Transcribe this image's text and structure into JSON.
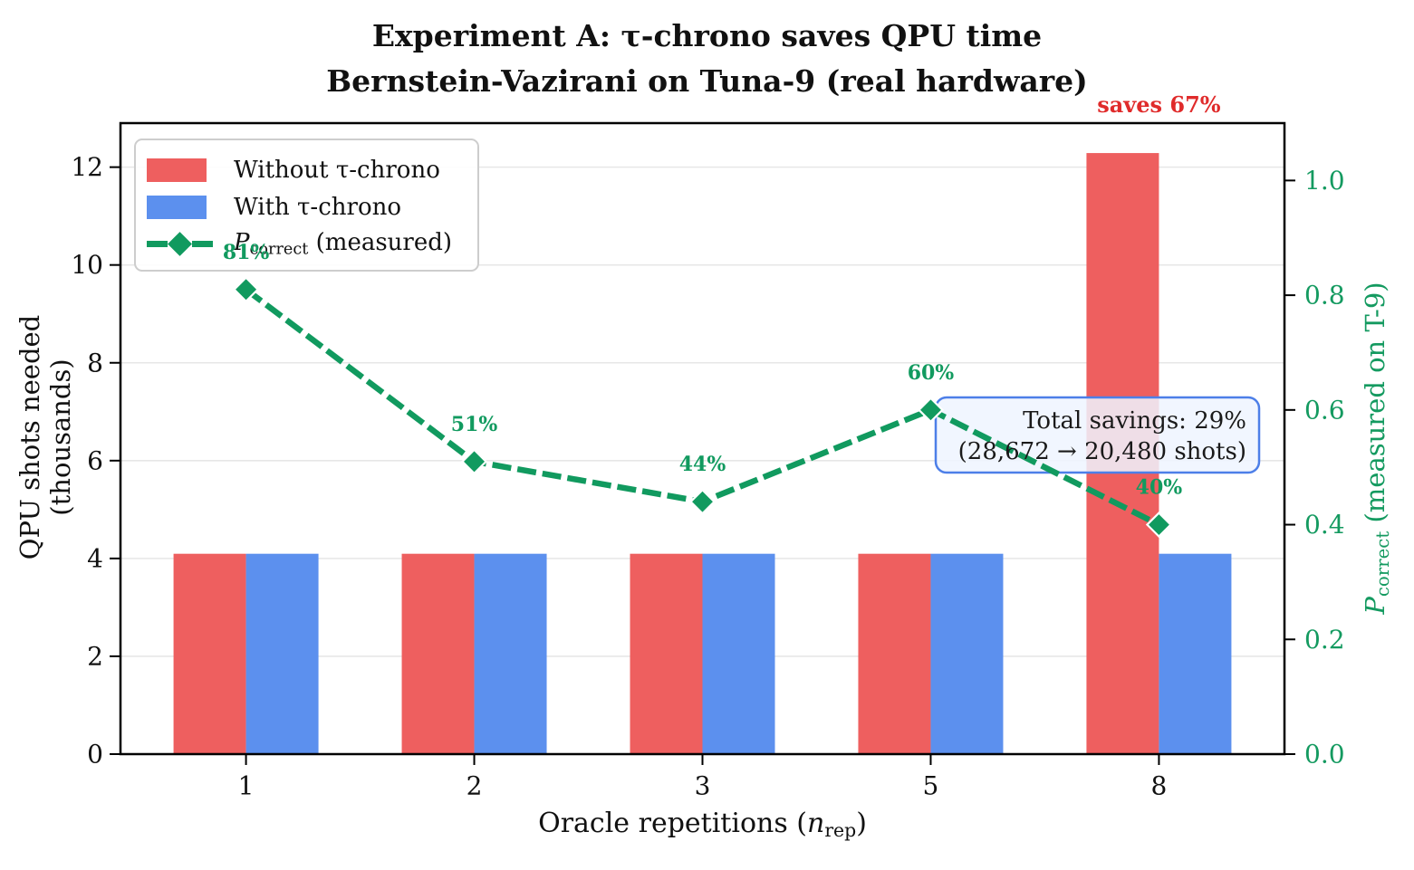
{
  "figure": {
    "title": "Experiment A: τ-chrono saves QPU time",
    "subtitle": "Bernstein-Vazirani on Tuna-9 (real hardware)"
  },
  "axes": {
    "x": {
      "label_pre": "Oracle repetitions (",
      "label_var": "n",
      "label_sub": "rep",
      "label_post": ")",
      "tick_labels": [
        "1",
        "2",
        "3",
        "5",
        "8"
      ]
    },
    "y_left": {
      "label": "QPU shots needed (thousands)",
      "tick_values": [
        0,
        2,
        4,
        6,
        8,
        10,
        12
      ],
      "tick_labels": [
        "0",
        "2",
        "4",
        "6",
        "8",
        "10",
        "12"
      ],
      "max": 12.9,
      "color": "#111111"
    },
    "y_right": {
      "label_var": "P",
      "label_sub": "correct",
      "label_rest": " (measured on T-9)",
      "tick_values": [
        0.0,
        0.2,
        0.4,
        0.6,
        0.8,
        1.0
      ],
      "tick_labels": [
        "0.0",
        "0.2",
        "0.4",
        "0.6",
        "0.8",
        "1.0"
      ],
      "max": 1.1,
      "color": "#149a60"
    }
  },
  "legend": {
    "items": [
      {
        "type": "bar",
        "color": "#ee5f5f",
        "label": "Without τ-chrono"
      },
      {
        "type": "bar",
        "color": "#5c90ee",
        "label": "With τ-chrono"
      },
      {
        "type": "line",
        "color": "#119a5f",
        "label_var": "P",
        "label_sub": "correct",
        "label_rest": " (measured)"
      }
    ]
  },
  "chart_data": {
    "type": "bar",
    "title": "Experiment A: τ-chrono saves QPU time",
    "subtitle": "Bernstein-Vazirani on Tuna-9 (real hardware)",
    "categories": [
      "1",
      "2",
      "3",
      "5",
      "8"
    ],
    "xlabel": "Oracle repetitions (n_rep)",
    "ylabel_left": "QPU shots needed (thousands)",
    "ylabel_right": "P_correct (measured on T-9)",
    "ylim_left": [
      0,
      12.9
    ],
    "ylim_right": [
      0,
      1.1
    ],
    "grid": "horizontal",
    "grid_color": "#e7e7e7",
    "legend_position": "upper left",
    "series": [
      {
        "name": "Without τ-chrono",
        "kind": "bar",
        "axis": "left",
        "color": "#ee5f5f",
        "values": [
          4.096,
          4.096,
          4.096,
          4.096,
          12.288
        ]
      },
      {
        "name": "With τ-chrono",
        "kind": "bar",
        "axis": "left",
        "color": "#5c90ee",
        "values": [
          4.096,
          4.096,
          4.096,
          4.096,
          4.096
        ]
      },
      {
        "name": "P_correct (measured)",
        "kind": "line",
        "axis": "right",
        "color": "#119a5f",
        "dashed": true,
        "marker": "diamond",
        "values": [
          0.81,
          0.51,
          0.44,
          0.6,
          0.4
        ],
        "point_labels": [
          "81%",
          "51%",
          "44%",
          "60%",
          "40%"
        ]
      }
    ],
    "annotations": [
      {
        "id": "saves",
        "text": "saves 67%",
        "color": "#e02b2b",
        "anchor_category": "8"
      },
      {
        "id": "total-savings",
        "line1": "Total savings: 29%",
        "line2": "(28,672 → 20,480 shots)",
        "text_color": "#1a1a1a",
        "border_color": "#4d7fe8",
        "fill_color": "#eef5ff"
      }
    ]
  }
}
